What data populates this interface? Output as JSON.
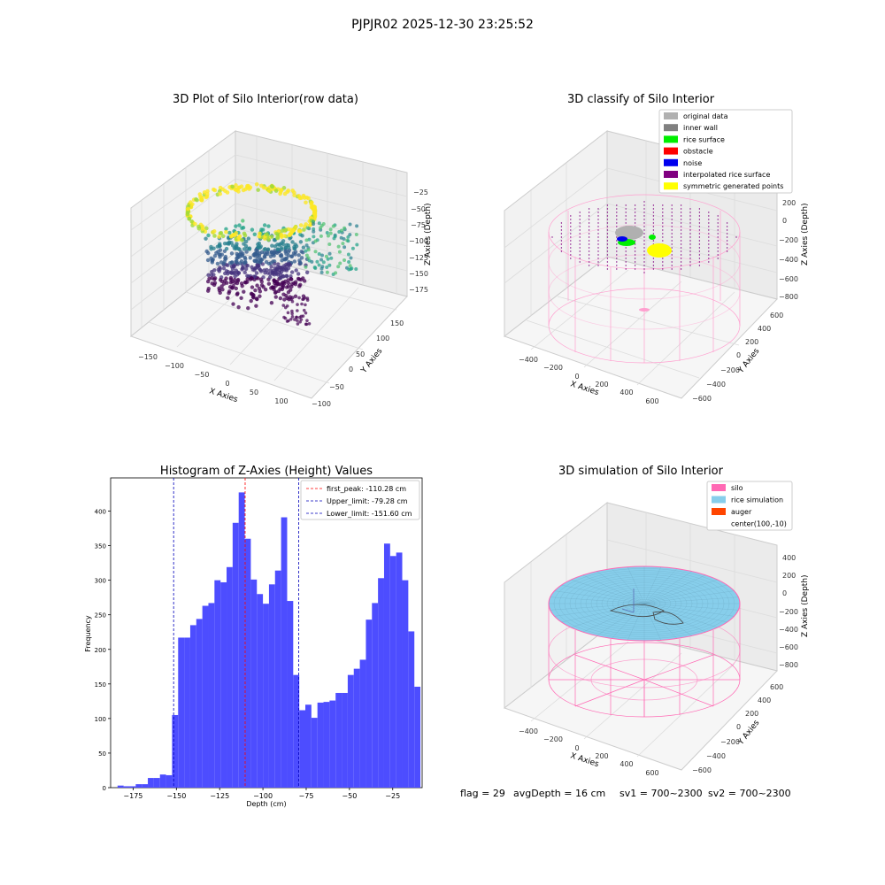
{
  "figure": {
    "suptitle": "PJPJR02 2025-12-30 23:25:52",
    "footer": {
      "flag": "flag = 29",
      "avg_depth": "avgDepth = 16 cm",
      "sv1": "sv1 = 700~2300",
      "sv2": "sv2 = 700~2300"
    }
  },
  "chart_data": [
    {
      "type": "scatter",
      "projection": "3d",
      "title": "3D Plot of Silo Interior(row data)",
      "xlabel": "X Axies",
      "ylabel": "Y Axies",
      "zlabel": "Z Axies (Depth)",
      "x_ticks": [
        "−150",
        "−100",
        "−50",
        "0",
        "50",
        "100"
      ],
      "y_ticks": [
        "−100",
        "−50",
        "0",
        "50",
        "100",
        "150"
      ],
      "z_ticks": [
        "−25",
        "−50",
        "−75",
        "−100",
        "−125",
        "−150",
        "−175"
      ],
      "colormap": "viridis",
      "xlim": [
        -170,
        120
      ],
      "ylim": [
        -100,
        170
      ],
      "zlim": [
        -190,
        -10
      ]
    },
    {
      "type": "scatter",
      "projection": "3d",
      "title": "3D classify of Silo Interior",
      "xlabel": "X Axies",
      "ylabel": "Y Axies",
      "zlabel": "Z Axies (Depth)",
      "x_ticks": [
        "−400",
        "−200",
        "0",
        "200",
        "400",
        "600"
      ],
      "y_ticks": [
        "−600",
        "−400",
        "−200",
        "0",
        "200",
        "400",
        "600"
      ],
      "z_ticks": [
        "200",
        "0",
        "−200",
        "−400",
        "−600",
        "−800"
      ],
      "legend": [
        {
          "label": "original data",
          "color": "#b0b0b0"
        },
        {
          "label": "inner wall",
          "color": "#808080"
        },
        {
          "label": "rice surface",
          "color": "#00ee00"
        },
        {
          "label": "obstacle",
          "color": "#ff0000"
        },
        {
          "label": "noise",
          "color": "#0000ee"
        },
        {
          "label": "interpolated rice surface",
          "color": "#800080"
        },
        {
          "label": "symmetric generated points",
          "color": "#ffff00"
        }
      ],
      "legend_placement": "top-right"
    },
    {
      "type": "bar",
      "subtype": "histogram",
      "title": "Histogram of Z-Axies (Height) Values",
      "xlabel": "Depth (cm)",
      "ylabel": "Frequency",
      "bar_color": "#4d4dff",
      "bin_width": 3.5,
      "bins_start": -184,
      "counts": [
        3,
        2,
        2,
        5,
        5,
        14,
        14,
        19,
        18,
        105,
        217,
        217,
        235,
        244,
        263,
        267,
        300,
        297,
        319,
        383,
        427,
        360,
        301,
        280,
        266,
        294,
        314,
        391,
        270,
        163,
        112,
        120,
        101,
        123,
        124,
        126,
        137,
        137,
        163,
        172,
        185,
        243,
        267,
        303,
        353,
        335,
        340,
        300,
        226,
        146
      ],
      "xlim": [
        -188,
        -8
      ],
      "ylim": [
        0,
        448
      ],
      "x_ticks": [
        -175,
        -150,
        -125,
        -100,
        -75,
        -50,
        -25
      ],
      "y_ticks": [
        0,
        50,
        100,
        150,
        200,
        250,
        300,
        350,
        400
      ],
      "lines": [
        {
          "label": "first_peak: -110.28 cm",
          "x": -110.28,
          "color": "#ff0000"
        },
        {
          "label": "Upper_limit: -79.28 cm",
          "x": -79.28,
          "color": "#0000bb"
        },
        {
          "label": "Lower_limit: -151.60 cm",
          "x": -151.6,
          "color": "#0000bb"
        }
      ],
      "legend_placement": "top-right"
    },
    {
      "type": "scatter",
      "projection": "3d",
      "title": "3D simulation of Silo Interior",
      "xlabel": "X Axies",
      "ylabel": "Y Axies",
      "zlabel": "Z Axies (Depth)",
      "x_ticks": [
        "−400",
        "−200",
        "0",
        "200",
        "400",
        "600"
      ],
      "y_ticks": [
        "−600",
        "−400",
        "−200",
        "0",
        "200",
        "400",
        "600"
      ],
      "z_ticks": [
        "400",
        "200",
        "0",
        "−200",
        "−400",
        "−600",
        "−800"
      ],
      "legend": [
        {
          "label": "silo",
          "color": "#ff69b4"
        },
        {
          "label": "rice simulation",
          "color": "#87ceeb"
        },
        {
          "label": "auger",
          "color": "#ff4500"
        },
        {
          "label": "center(100,-10)",
          "color": ""
        }
      ],
      "legend_placement": "top-right"
    }
  ]
}
